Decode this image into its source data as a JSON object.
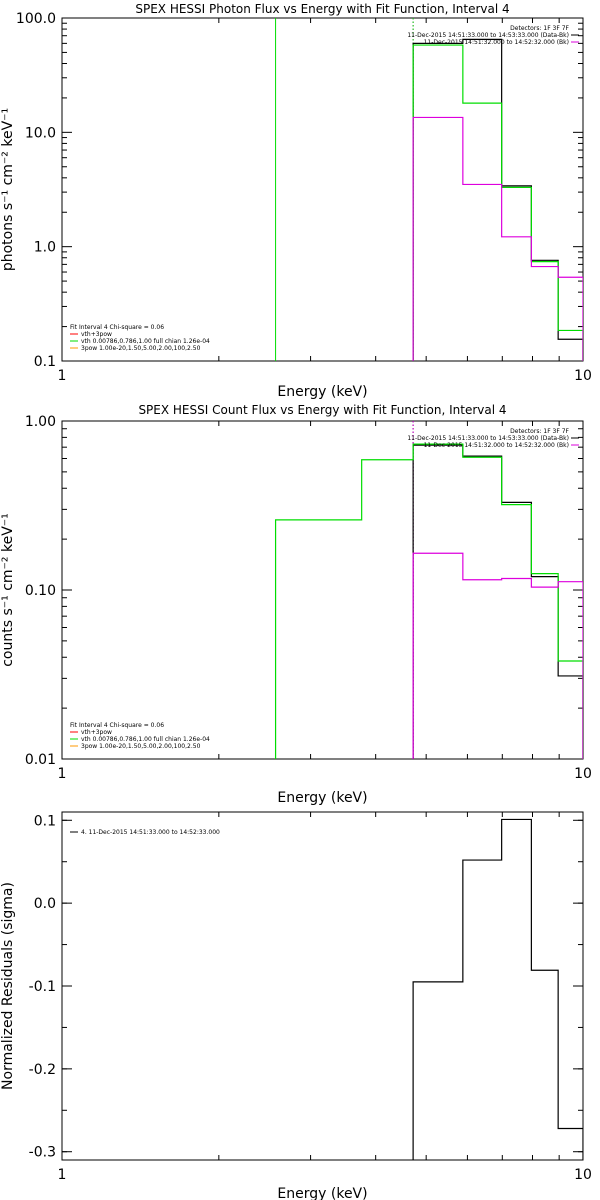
{
  "colors": {
    "black": "#000000",
    "green": "#00dd00",
    "magenta": "#dd00dd",
    "orange": "#ff9900",
    "red": "#ff0000"
  },
  "chart_data": [
    {
      "type": "line",
      "step": true,
      "title": "SPEX HESSI Photon Flux vs Energy with Fit Function, Interval 4",
      "xlabel": "Energy (keV)",
      "ylabel": "photons s⁻¹ cm⁻² keV⁻¹",
      "xscale": "log",
      "yscale": "log",
      "xlim": [
        1,
        10
      ],
      "ylim": [
        0.1,
        100
      ],
      "xticks": [
        {
          "v": 1,
          "label": "1"
        },
        {
          "v": 10,
          "label": "10"
        }
      ],
      "yticks": [
        {
          "v": 0.1,
          "label": "0.1"
        },
        {
          "v": 1,
          "label": "1.0"
        },
        {
          "v": 10,
          "label": "10.0"
        },
        {
          "v": 100,
          "label": "100.0"
        }
      ],
      "info": [
        "Detectors: 1F 3F 7F",
        "11-Dec-2015 14:51:33.000 to 14:53:33.000 (Data-Bk)",
        "11-Dec-2015 14:51:32.000 to 14:52:32.000 (Bk)"
      ],
      "legend": [
        "Fit Interval  4    Chi-square = 0.06",
        "vth+3pow",
        "vth 0.00786,0.786,1.00   full chian 1.26e-04",
        "3pow 1.00e-20,1.50,5.00,2.00,100,2.50"
      ],
      "vlines": [
        {
          "x": 2.57,
          "color": "green",
          "style": "solid"
        },
        {
          "x": 4.72,
          "color": "magenta",
          "style": "dotted"
        },
        {
          "x": 4.72,
          "color": "green",
          "style": "dotted"
        }
      ],
      "series": [
        {
          "color": "black",
          "edges": [
            4.72,
            5.88,
            6.98,
            7.96,
            8.96,
            10.0
          ],
          "values": [
            60,
            65,
            3.4,
            0.76,
            0.155
          ]
        },
        {
          "color": "green",
          "edges": [
            4.72,
            5.88,
            6.98,
            7.96,
            8.96,
            10.0
          ],
          "values": [
            58,
            18,
            3.3,
            0.74,
            0.185
          ]
        },
        {
          "color": "magenta",
          "edges": [
            4.72,
            5.88,
            6.98,
            7.96,
            8.96,
            10.0
          ],
          "values": [
            13.5,
            3.5,
            1.22,
            0.67,
            0.54
          ]
        }
      ]
    },
    {
      "type": "line",
      "step": true,
      "title": "SPEX HESSI Count Flux vs Energy with Fit Function, Interval 4",
      "xlabel": "Energy (keV)",
      "ylabel": "counts s⁻¹ cm⁻² keV⁻¹",
      "xscale": "log",
      "yscale": "log",
      "xlim": [
        1,
        10
      ],
      "ylim": [
        0.01,
        1
      ],
      "xticks": [
        {
          "v": 1,
          "label": "1"
        },
        {
          "v": 10,
          "label": "10"
        }
      ],
      "yticks": [
        {
          "v": 0.01,
          "label": "0.01"
        },
        {
          "v": 0.1,
          "label": "0.10"
        },
        {
          "v": 1,
          "label": "1.00"
        }
      ],
      "info": [
        "Detectors: 1F 3F 7F",
        "11-Dec-2015 14:51:33.000 to 14:53:33.000 (Data-Bk)",
        "11-Dec-2015 14:51:32.000 to 14:52:32.000 (Bk)"
      ],
      "legend": [
        "Fit Interval  4    Chi-square = 0.06",
        "vth+3pow",
        "vth 0.00786,0.786,1.00   full chian 1.26e-04",
        "3pow 1.00e-20,1.50,5.00,2.00,100,2.50"
      ],
      "vlines": [
        {
          "x": 4.72,
          "color": "black",
          "style": "dotted"
        },
        {
          "x": 4.72,
          "color": "magenta",
          "style": "dotted"
        }
      ],
      "series": [
        {
          "color": "black",
          "edges": [
            4.72,
            5.88,
            6.98,
            7.96,
            8.96,
            10.0
          ],
          "values": [
            0.72,
            0.62,
            0.33,
            0.12,
            0.031
          ]
        },
        {
          "color": "green",
          "edges": [
            2.57,
            3.76,
            4.72,
            5.88,
            6.98,
            7.96,
            8.96,
            10.0
          ],
          "values": [
            0.26,
            0.59,
            0.73,
            0.61,
            0.32,
            0.125,
            0.038
          ]
        },
        {
          "color": "magenta",
          "edges": [
            4.72,
            5.88,
            6.98,
            7.96,
            8.96,
            10.0
          ],
          "values": [
            0.165,
            0.115,
            0.117,
            0.104,
            0.112
          ]
        }
      ]
    },
    {
      "type": "line",
      "step": true,
      "title": "",
      "xlabel": "Energy (keV)",
      "ylabel": "Normalized Residuals (sigma)",
      "xscale": "log",
      "yscale": "linear",
      "xlim": [
        1,
        10
      ],
      "ylim": [
        -0.31,
        0.11
      ],
      "xticks": [
        {
          "v": 1,
          "label": "1"
        },
        {
          "v": 10,
          "label": "10"
        }
      ],
      "yticks": [
        {
          "v": 0.1,
          "label": "0.1"
        },
        {
          "v": 0.0,
          "label": "0.0"
        },
        {
          "v": -0.1,
          "label": "-0.1"
        },
        {
          "v": -0.2,
          "label": "-0.2"
        },
        {
          "v": -0.3,
          "label": "-0.3"
        }
      ],
      "info": [],
      "legend": [
        "4. 11-Dec-2015 14:51:33.000 to 14:52:33.000"
      ],
      "vlines": [],
      "series": [
        {
          "color": "black",
          "edges": [
            4.72,
            5.88,
            6.98,
            7.96,
            8.96,
            10.0
          ],
          "values": [
            -0.095,
            0.052,
            0.101,
            -0.081,
            -0.272
          ]
        }
      ]
    }
  ]
}
